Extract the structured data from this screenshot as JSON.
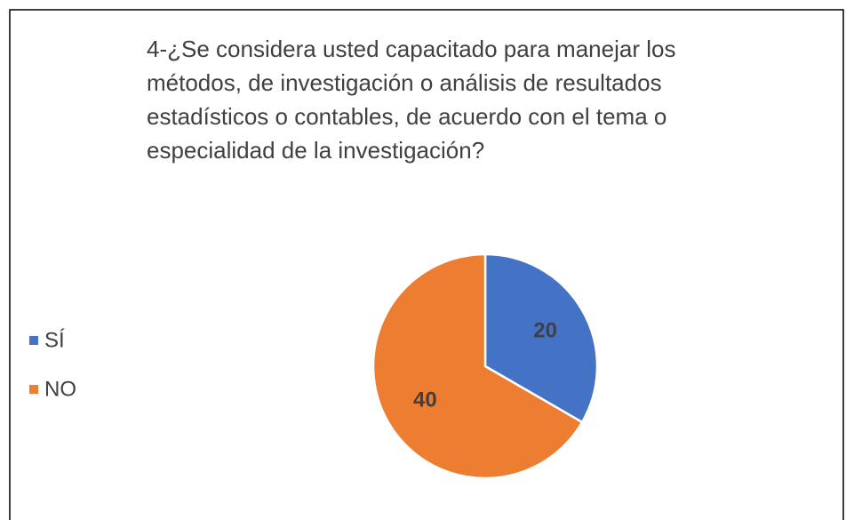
{
  "chart_data": {
    "type": "pie",
    "title": "4-¿Se considera usted capacitado para manejar los métodos, de investigación o análisis de resultados estadísticos o contables, de acuerdo con el tema o especialidad de la investigación?",
    "categories": [
      "SÍ",
      "NO"
    ],
    "values": [
      20,
      40
    ],
    "colors": [
      "#4472c4",
      "#ed7d31"
    ],
    "legend": "left"
  }
}
